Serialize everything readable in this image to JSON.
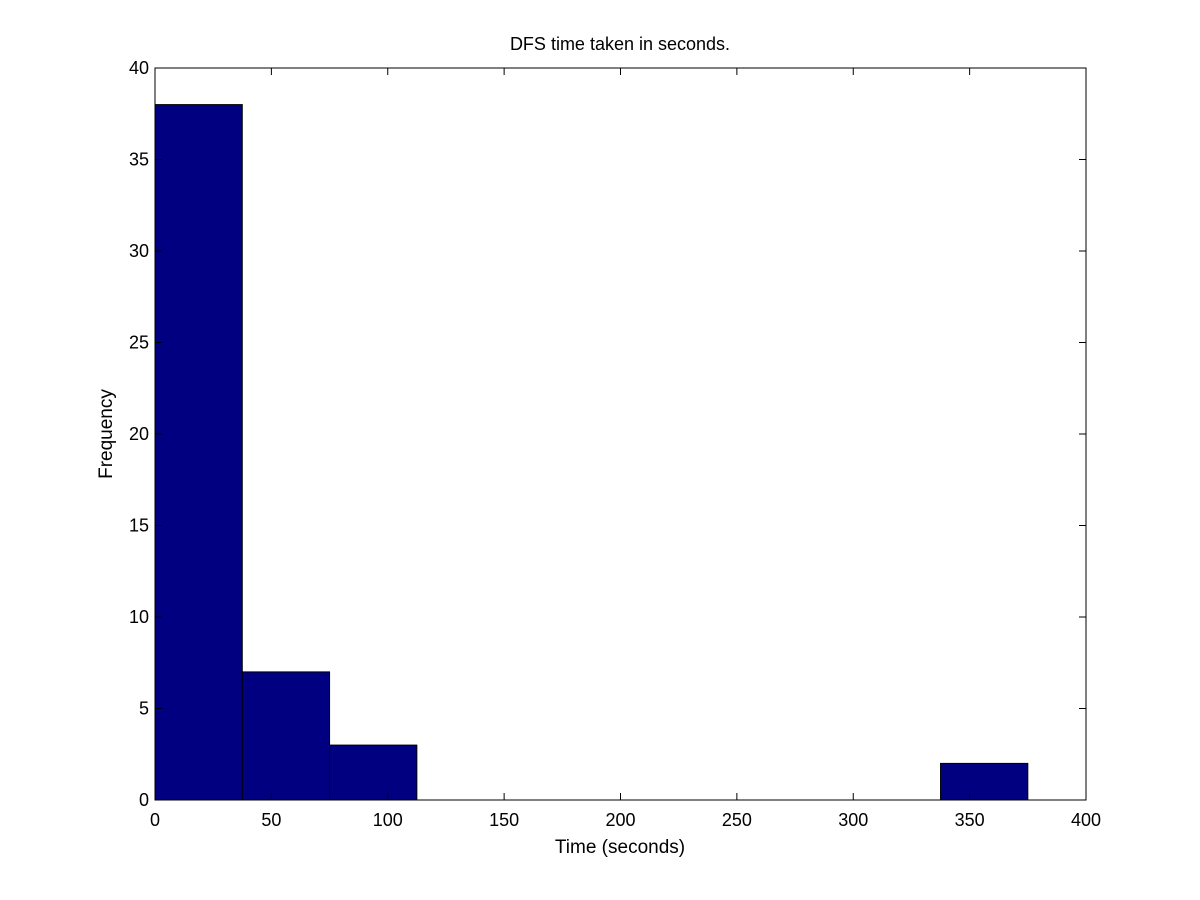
{
  "chart_data": {
    "type": "bar",
    "title": "DFS time taken in seconds.",
    "xlabel": "Time (seconds)",
    "ylabel": "Frequency",
    "xlim": [
      0,
      400
    ],
    "ylim": [
      0,
      40
    ],
    "xticks": [
      0,
      50,
      100,
      150,
      200,
      250,
      300,
      350,
      400
    ],
    "yticks": [
      0,
      5,
      10,
      15,
      20,
      25,
      30,
      35,
      40
    ],
    "bins": [
      {
        "x0": 0,
        "x1": 37.5,
        "value": 38
      },
      {
        "x0": 37.5,
        "x1": 75,
        "value": 7
      },
      {
        "x0": 75,
        "x1": 112.5,
        "value": 3
      },
      {
        "x0": 112.5,
        "x1": 150,
        "value": 0
      },
      {
        "x0": 150,
        "x1": 187.5,
        "value": 0
      },
      {
        "x0": 187.5,
        "x1": 225,
        "value": 0
      },
      {
        "x0": 225,
        "x1": 262.5,
        "value": 0
      },
      {
        "x0": 262.5,
        "x1": 300,
        "value": 0
      },
      {
        "x0": 300,
        "x1": 337.5,
        "value": 0
      },
      {
        "x0": 337.5,
        "x1": 375,
        "value": 2
      }
    ],
    "grid": false,
    "legend": "none",
    "bar_color": "#000080",
    "edge_color": "#000000"
  }
}
